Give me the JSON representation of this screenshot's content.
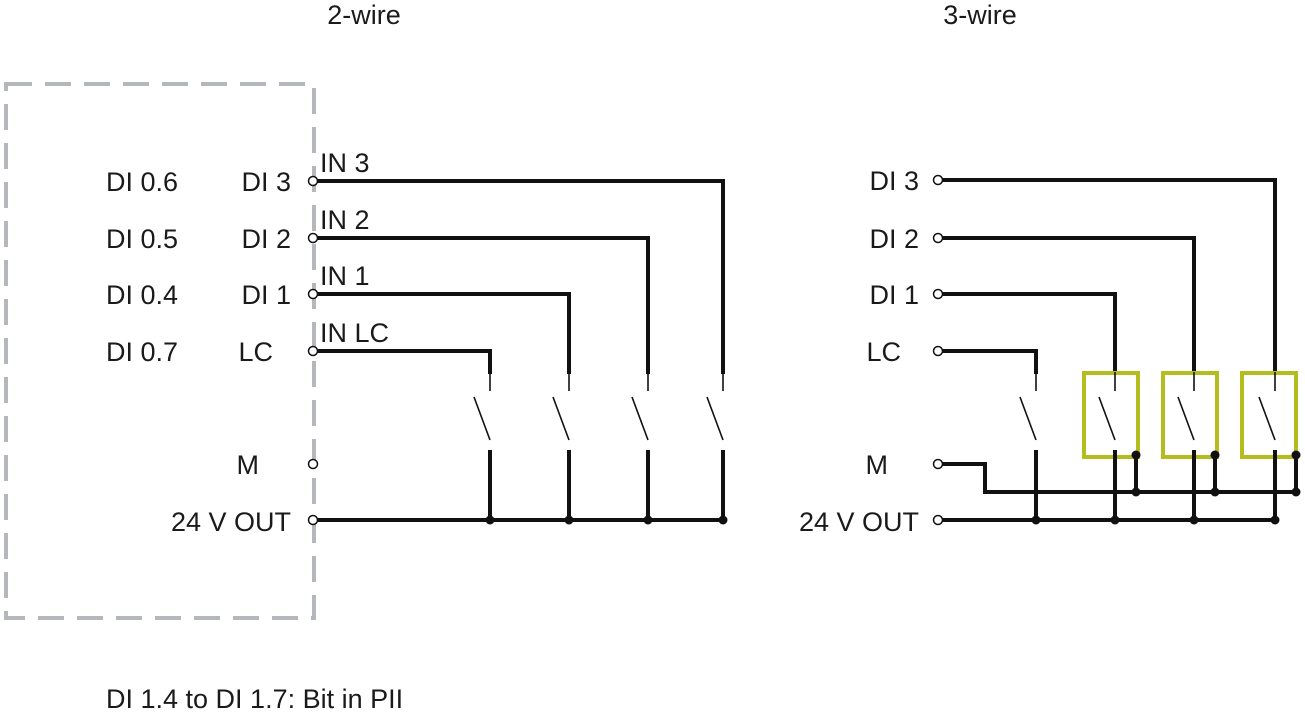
{
  "titles": {
    "two_wire": "2-wire",
    "three_wire": "3-wire"
  },
  "two_wire": {
    "outer_labels": [
      "DI 0.6",
      "DI 0.5",
      "DI 0.4",
      "DI 0.7"
    ],
    "terminals": [
      "DI 3",
      "DI 2",
      "DI 1",
      "LC",
      "M",
      "24 V OUT"
    ],
    "wire_labels": [
      "IN 3",
      "IN 2",
      "IN 1",
      "IN LC"
    ]
  },
  "three_wire": {
    "terminals": [
      "DI 3",
      "DI 2",
      "DI 1",
      "LC",
      "M",
      "24 V OUT"
    ]
  },
  "footnote": "DI 1.4 to DI 1.7: Bit in PII",
  "colors": {
    "wire": "#111111",
    "module_border": "#b4b8bc",
    "sensor_box": "#b3bd1e"
  }
}
